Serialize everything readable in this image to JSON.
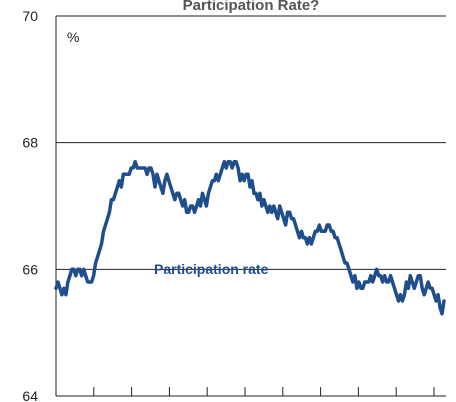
{
  "chart_data": {
    "type": "line",
    "title": "Participation Rate?",
    "ylabel": "%",
    "xlabel": "",
    "ylim": [
      64,
      70
    ],
    "yticks": [
      64,
      66,
      68,
      70
    ],
    "grid": "horizontal",
    "x_tick_count": 10,
    "series": [
      {
        "name": "Participation rate",
        "color": "#1f4e8c",
        "values": [
          65.7,
          65.8,
          65.7,
          65.6,
          65.7,
          65.6,
          65.8,
          65.9,
          66.0,
          66.0,
          65.9,
          66.0,
          66.0,
          65.9,
          66.0,
          65.9,
          65.8,
          65.8,
          65.8,
          65.9,
          66.1,
          66.2,
          66.3,
          66.4,
          66.6,
          66.7,
          66.8,
          66.9,
          67.1,
          67.1,
          67.2,
          67.3,
          67.4,
          67.3,
          67.5,
          67.5,
          67.5,
          67.5,
          67.6,
          67.6,
          67.7,
          67.6,
          67.6,
          67.6,
          67.6,
          67.6,
          67.5,
          67.6,
          67.6,
          67.5,
          67.3,
          67.5,
          67.4,
          67.3,
          67.2,
          67.4,
          67.5,
          67.4,
          67.3,
          67.2,
          67.1,
          67.2,
          67.2,
          67.1,
          67.0,
          67.1,
          66.9,
          66.9,
          67.0,
          67.0,
          66.9,
          67.0,
          67.1,
          67.0,
          67.2,
          67.1,
          67.0,
          67.2,
          67.3,
          67.4,
          67.4,
          67.5,
          67.4,
          67.5,
          67.6,
          67.7,
          67.6,
          67.7,
          67.7,
          67.6,
          67.7,
          67.7,
          67.6,
          67.4,
          67.5,
          67.4,
          67.5,
          67.5,
          67.3,
          67.4,
          67.2,
          67.2,
          67.1,
          67.2,
          67.0,
          67.1,
          67.0,
          66.9,
          67.0,
          66.9,
          67.0,
          66.9,
          66.8,
          67.0,
          66.9,
          66.8,
          66.7,
          66.9,
          66.9,
          66.8,
          66.8,
          66.7,
          66.6,
          66.5,
          66.6,
          66.5,
          66.5,
          66.4,
          66.5,
          66.4,
          66.5,
          66.6,
          66.6,
          66.7,
          66.6,
          66.6,
          66.6,
          66.7,
          66.7,
          66.6,
          66.6,
          66.5,
          66.5,
          66.4,
          66.3,
          66.2,
          66.1,
          66.1,
          66.0,
          65.9,
          65.8,
          65.9,
          65.7,
          65.8,
          65.7,
          65.7,
          65.8,
          65.8,
          65.8,
          65.9,
          65.8,
          65.9,
          66.0,
          65.9,
          65.9,
          65.8,
          65.9,
          65.8,
          65.8,
          65.9,
          65.8,
          65.7,
          65.6,
          65.5,
          65.6,
          65.5,
          65.6,
          65.8,
          65.7,
          65.9,
          65.8,
          65.7,
          65.8,
          65.9,
          65.9,
          65.7,
          65.6,
          65.7,
          65.8,
          65.7,
          65.7,
          65.6,
          65.5,
          65.6,
          65.4,
          65.3,
          65.5
        ]
      }
    ],
    "annotations": [
      {
        "text": "Participation rate",
        "series": 0
      }
    ]
  }
}
